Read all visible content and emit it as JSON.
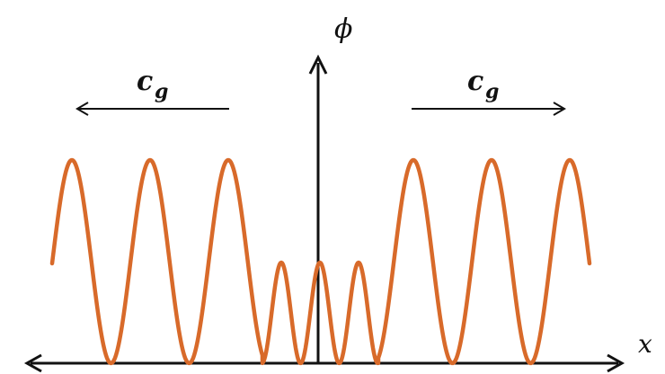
{
  "labels": {
    "phi": "ϕ",
    "x": "x",
    "cg_left_main": "c",
    "cg_left_sub": "g",
    "cg_right_main": "c",
    "cg_right_sub": "g"
  },
  "colors": {
    "wave": "#d86a2a",
    "axis": "#111111"
  },
  "icons": {
    "arrow_left": "arrow-left-icon",
    "arrow_right": "arrow-right-icon",
    "x_axis": "double-arrow-icon",
    "phi_axis": "arrow-up-icon"
  }
}
